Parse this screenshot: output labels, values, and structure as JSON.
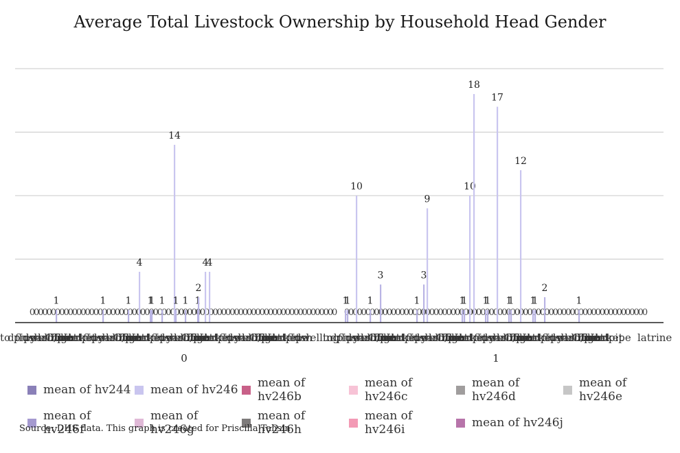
{
  "chart_data": {
    "type": "bar",
    "title": "Average Total Livestock Ownership by Household Head Gender",
    "source": "Source: DHS data. This graph is created for Priscilla Tahsin",
    "groups": [
      "0",
      "1"
    ],
    "series": [
      {
        "name": "mean of hv244",
        "color": "#8a80b8"
      },
      {
        "name": "mean of hv246",
        "color": "#c9c5ef"
      },
      {
        "name": "mean of hv246b",
        "color": "#c86088"
      },
      {
        "name": "mean of hv246c",
        "color": "#f7c3d6"
      },
      {
        "name": "mean of hv246d",
        "color": "#a09d9d"
      },
      {
        "name": "mean of hv246e",
        "color": "#c6c6c6"
      },
      {
        "name": "mean of hv246f",
        "color": "#a59ad0"
      },
      {
        "name": "mean of hv246g",
        "color": "#e0b9d7"
      },
      {
        "name": "mean of hv246h",
        "color": "#7e7b7b"
      },
      {
        "name": "mean of hv246i",
        "color": "#f39ab5"
      },
      {
        "name": "mean of hv246j",
        "color": "#b774aa"
      }
    ],
    "bars": [
      {
        "group": "0",
        "value": 1
      },
      {
        "group": "0",
        "value": 1
      },
      {
        "group": "0",
        "value": 1
      },
      {
        "group": "0",
        "value": 4
      },
      {
        "group": "0",
        "value": 1
      },
      {
        "group": "0",
        "value": 1
      },
      {
        "group": "0",
        "value": 14
      },
      {
        "group": "0",
        "value": 1
      },
      {
        "group": "0",
        "value": 1
      },
      {
        "group": "0",
        "value": 4
      },
      {
        "group": "0",
        "value": 1
      },
      {
        "group": "0",
        "value": 1
      },
      {
        "group": "0",
        "value": 2
      },
      {
        "group": "0",
        "value": 4
      },
      {
        "group": "1",
        "value": 1
      },
      {
        "group": "1",
        "value": 1
      },
      {
        "group": "1",
        "value": 10
      },
      {
        "group": "1",
        "value": 1
      },
      {
        "group": "1",
        "value": 3
      },
      {
        "group": "1",
        "value": 1
      },
      {
        "group": "1",
        "value": 3
      },
      {
        "group": "1",
        "value": 9
      },
      {
        "group": "1",
        "value": 1
      },
      {
        "group": "1",
        "value": 1
      },
      {
        "group": "1",
        "value": 10
      },
      {
        "group": "1",
        "value": 18
      },
      {
        "group": "1",
        "value": 1
      },
      {
        "group": "1",
        "value": 1
      },
      {
        "group": "1",
        "value": 17
      },
      {
        "group": "1",
        "value": 1
      },
      {
        "group": "1",
        "value": 1
      },
      {
        "group": "1",
        "value": 12
      },
      {
        "group": "1",
        "value": 1
      },
      {
        "group": "1",
        "value": 1
      },
      {
        "group": "1",
        "value": 2
      },
      {
        "group": "1",
        "value": 1
      }
    ],
    "zero_label": "0",
    "category_label_fragments": [
      "to pipe",
      "d",
      "flush",
      "dwelling",
      "yard/plot",
      "latrine",
      "Other",
      "Toilet",
      "bucket"
    ],
    "category_label_fragments_right": [
      "latrine"
    ],
    "ylim": [
      0,
      20
    ],
    "grid": true,
    "legend_position": "bottom"
  }
}
